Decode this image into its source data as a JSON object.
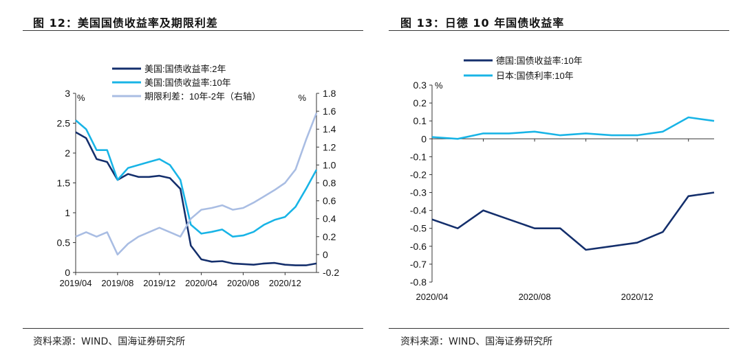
{
  "figure12": {
    "title": "图 12：美国国债收益率及期限利差",
    "source": "资料来源：WIND、国海证券研究所"
  },
  "figure13": {
    "title": "图 13：日德 10 年国债收益率",
    "source": "资料来源：WIND、国海证券研究所"
  },
  "colors": {
    "dark": "#142f6c",
    "bright": "#18b4e6",
    "light": "#a9bde3"
  },
  "chart_data": [
    {
      "type": "line",
      "title": "",
      "y_unit_left": "%",
      "y_unit_right": "%",
      "ylim_left": [
        0,
        3
      ],
      "ylim_right": [
        -0.2,
        1.8
      ],
      "y_ticks_left": [
        "0",
        "0.5",
        "1",
        "1.5",
        "2",
        "2.5",
        "3"
      ],
      "y_ticks_right": [
        "-0.2",
        "0",
        "0.2",
        "0.4",
        "0.6",
        "0.8",
        "1.0",
        "1.2",
        "1.4",
        "1.6",
        "1.8"
      ],
      "x_ticks": [
        "2019/04",
        "2019/08",
        "2019/12",
        "2020/04",
        "2020/08",
        "2020/12"
      ],
      "legend_position": "top",
      "x": [
        "2019/04",
        "2019/05",
        "2019/06",
        "2019/07",
        "2019/08",
        "2019/09",
        "2019/10",
        "2019/11",
        "2019/12",
        "2020/01",
        "2020/02",
        "2020/03",
        "2020/04",
        "2020/05",
        "2020/06",
        "2020/07",
        "2020/08",
        "2020/09",
        "2020/10",
        "2020/11",
        "2020/12",
        "2021/01",
        "2021/02",
        "2021/03"
      ],
      "series": [
        {
          "name": "美国:国债收益率:2年",
          "axis": "left",
          "values": [
            2.35,
            2.25,
            1.9,
            1.85,
            1.55,
            1.65,
            1.6,
            1.6,
            1.62,
            1.58,
            1.4,
            0.45,
            0.22,
            0.18,
            0.19,
            0.15,
            0.14,
            0.13,
            0.15,
            0.16,
            0.13,
            0.12,
            0.12,
            0.15
          ]
        },
        {
          "name": "美国:国债收益率:10年",
          "axis": "left",
          "values": [
            2.55,
            2.4,
            2.05,
            2.05,
            1.55,
            1.75,
            1.8,
            1.85,
            1.9,
            1.8,
            1.55,
            0.8,
            0.65,
            0.68,
            0.72,
            0.6,
            0.62,
            0.68,
            0.8,
            0.88,
            0.93,
            1.1,
            1.4,
            1.72
          ]
        },
        {
          "name": "期限利差：10年-2年（右轴）",
          "axis": "right",
          "values": [
            0.2,
            0.25,
            0.2,
            0.25,
            0.0,
            0.12,
            0.2,
            0.25,
            0.3,
            0.25,
            0.2,
            0.4,
            0.5,
            0.52,
            0.55,
            0.5,
            0.52,
            0.58,
            0.65,
            0.72,
            0.8,
            0.95,
            1.28,
            1.58
          ]
        }
      ]
    },
    {
      "type": "line",
      "title": "",
      "y_unit": "%",
      "ylim": [
        -0.8,
        0.3
      ],
      "y_ticks": [
        "0.3",
        "0.2",
        "0.1",
        "0",
        "-0.1",
        "-0.2",
        "-0.3",
        "-0.4",
        "-0.5",
        "-0.6",
        "-0.7",
        "-0.8"
      ],
      "x_ticks": [
        "2020/04",
        "2020/08",
        "2020/12"
      ],
      "legend_position": "top",
      "x": [
        "2020/04",
        "2020/05",
        "2020/06",
        "2020/07",
        "2020/08",
        "2020/09",
        "2020/10",
        "2020/11",
        "2020/12",
        "2021/01",
        "2021/02",
        "2021/03"
      ],
      "series": [
        {
          "name": "德国:国债收益率:10年",
          "values": [
            -0.45,
            -0.5,
            -0.4,
            -0.45,
            -0.5,
            -0.5,
            -0.62,
            -0.6,
            -0.58,
            -0.52,
            -0.32,
            -0.3
          ]
        },
        {
          "name": "日本:国债利率:10年",
          "values": [
            0.01,
            0.0,
            0.03,
            0.03,
            0.04,
            0.02,
            0.03,
            0.02,
            0.02,
            0.04,
            0.12,
            0.1
          ]
        }
      ]
    }
  ]
}
